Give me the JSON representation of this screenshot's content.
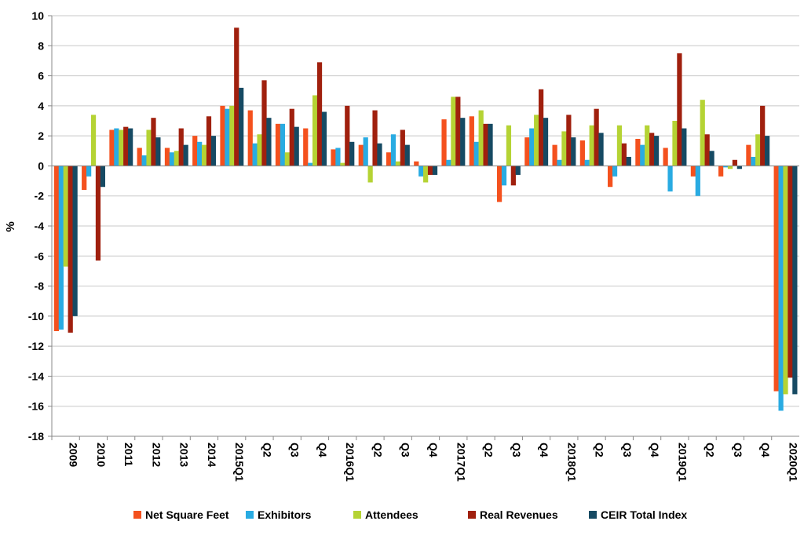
{
  "chart_data": {
    "type": "bar",
    "title": "",
    "xlabel": "",
    "ylabel": "%",
    "ylim": [
      -18,
      10
    ],
    "yticks": [
      10,
      8,
      6,
      4,
      2,
      0,
      -2,
      -4,
      -6,
      -8,
      -10,
      -12,
      -14,
      -16,
      -18
    ],
    "grid": true,
    "legend_position": "bottom",
    "categories": [
      "2009",
      "2010",
      "2011",
      "2012",
      "2013",
      "2014",
      "2015Q1",
      "Q2",
      "Q3",
      "Q4",
      "2016Q1",
      "Q2",
      "Q3",
      "Q4",
      "2017Q1",
      "Q2",
      "Q3",
      "Q4",
      "2018Q1",
      "Q2",
      "Q3",
      "Q4",
      "2019Q1",
      "Q2",
      "Q3",
      "Q4",
      "2020Q1"
    ],
    "series": [
      {
        "name": "Net Square Feet",
        "color": "#F4511E",
        "values": [
          -11.0,
          -1.6,
          2.4,
          1.2,
          1.2,
          2.0,
          4.0,
          3.7,
          2.8,
          2.5,
          1.1,
          1.4,
          0.9,
          0.3,
          3.1,
          3.3,
          -2.4,
          1.9,
          1.4,
          1.7,
          -1.4,
          1.8,
          1.2,
          -0.7,
          -0.7,
          1.4,
          -15.0
        ]
      },
      {
        "name": "Exhibitors",
        "color": "#29ABE2",
        "values": [
          -10.9,
          -0.7,
          2.5,
          0.7,
          0.9,
          1.6,
          3.8,
          1.5,
          2.8,
          0.2,
          1.2,
          1.9,
          2.1,
          -0.7,
          0.4,
          1.6,
          -1.3,
          2.5,
          0.4,
          0.4,
          -0.7,
          1.4,
          -1.7,
          -2.0,
          -0.1,
          0.6,
          -16.3
        ]
      },
      {
        "name": "Attendees",
        "color": "#B5D334",
        "values": [
          -6.7,
          3.4,
          2.4,
          2.4,
          1.0,
          1.4,
          4.0,
          2.1,
          0.9,
          4.7,
          0.2,
          -1.1,
          0.3,
          -1.1,
          4.6,
          3.7,
          2.7,
          3.4,
          2.3,
          2.7,
          2.7,
          2.7,
          3.0,
          4.4,
          -0.2,
          2.1,
          -15.2
        ]
      },
      {
        "name": "Real Revenues",
        "color": "#A0200E",
        "values": [
          -11.1,
          -6.3,
          2.6,
          3.2,
          2.5,
          3.3,
          9.2,
          5.7,
          3.8,
          6.9,
          4.0,
          3.7,
          2.4,
          -0.6,
          4.6,
          2.8,
          -1.3,
          5.1,
          3.4,
          3.8,
          1.5,
          2.2,
          7.5,
          2.1,
          0.4,
          4.0,
          -14.1
        ]
      },
      {
        "name": "CEIR Total Index",
        "color": "#164A63",
        "values": [
          -10.0,
          -1.4,
          2.5,
          1.9,
          1.4,
          2.0,
          5.2,
          3.2,
          2.6,
          3.6,
          1.6,
          1.5,
          1.4,
          -0.6,
          3.2,
          2.8,
          -0.6,
          3.2,
          1.9,
          2.2,
          0.6,
          2.0,
          2.5,
          1.0,
          -0.2,
          2.0,
          -15.2
        ]
      }
    ]
  }
}
